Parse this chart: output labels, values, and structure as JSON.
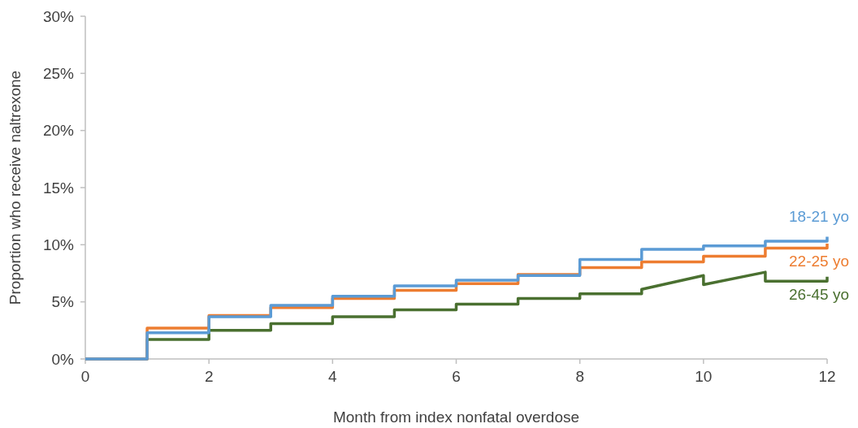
{
  "chart_data": {
    "type": "line",
    "xlabel": "Month from index nonfatal overdose",
    "ylabel": "Proportion who receive naltrexone",
    "xlim": [
      0,
      12
    ],
    "xticks": [
      0,
      2,
      4,
      6,
      8,
      10,
      12
    ],
    "ylim": [
      0,
      30
    ],
    "yticks": [
      {
        "value": 0,
        "label": "0%"
      },
      {
        "value": 5,
        "label": "5%"
      },
      {
        "value": 10,
        "label": "10%"
      },
      {
        "value": 15,
        "label": "15%"
      },
      {
        "value": 20,
        "label": "20%"
      },
      {
        "value": 25,
        "label": "25%"
      },
      {
        "value": 30,
        "label": "30%"
      }
    ],
    "grid": false,
    "series": [
      {
        "name": "18-21 yo",
        "color": "#5b9bd5",
        "x": [
          0,
          1,
          1,
          2,
          2,
          3,
          3,
          4,
          4,
          5,
          5,
          6,
          6,
          7,
          7,
          8,
          8,
          9,
          9,
          10,
          10,
          11,
          11,
          12,
          12
        ],
        "values": [
          0,
          0,
          2.3,
          2.3,
          3.7,
          3.7,
          4.7,
          4.7,
          5.5,
          5.5,
          6.4,
          6.4,
          6.9,
          6.9,
          7.3,
          7.3,
          8.7,
          8.7,
          9.6,
          9.6,
          9.9,
          9.9,
          10.3,
          10.3,
          10.7
        ]
      },
      {
        "name": "22-25 yo",
        "color": "#ed7d31",
        "x": [
          0,
          1,
          1,
          2,
          2,
          3,
          3,
          4,
          4,
          5,
          5,
          6,
          6,
          7,
          7,
          8,
          8,
          9,
          9,
          10,
          10,
          11,
          11,
          12,
          12
        ],
        "values": [
          0,
          0,
          2.7,
          2.7,
          3.8,
          3.8,
          4.5,
          4.5,
          5.3,
          5.3,
          6.0,
          6.0,
          6.6,
          6.6,
          7.4,
          7.4,
          8.0,
          8.0,
          8.5,
          8.5,
          9.0,
          9.0,
          9.7,
          9.7,
          10.1
        ]
      },
      {
        "name": "26-45 yo",
        "color": "#4a7030",
        "x": [
          0,
          1,
          1,
          2,
          2,
          3,
          3,
          4,
          4,
          5,
          5,
          6,
          6,
          7,
          7,
          8,
          8,
          9,
          9,
          10,
          10,
          11,
          11,
          12,
          12
        ],
        "values": [
          0,
          0,
          1.7,
          1.7,
          2.5,
          2.5,
          3.1,
          3.1,
          3.7,
          3.7,
          4.3,
          4.3,
          4.8,
          4.8,
          5.3,
          5.3,
          5.7,
          5.7,
          6.1,
          7.3,
          6.5,
          7.6,
          6.8,
          6.8,
          7.2
        ]
      }
    ]
  }
}
